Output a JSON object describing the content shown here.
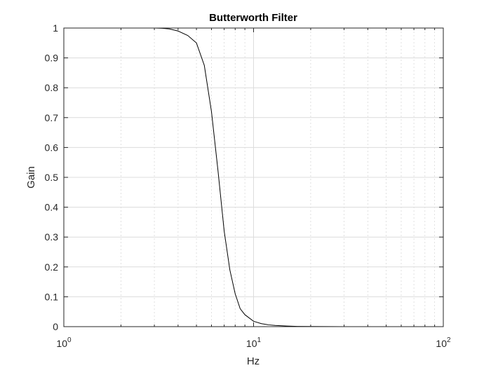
{
  "chart_data": {
    "type": "line",
    "title": "Butterworth Filter",
    "xlabel": "Hz",
    "ylabel": "Gain",
    "xscale": "log",
    "xlim": [
      1,
      100
    ],
    "ylim": [
      0,
      1
    ],
    "grid": true,
    "minor_grid": true,
    "line_color": "#000000",
    "x_ticks": [
      {
        "base": "10",
        "exp": "0",
        "value": 1
      },
      {
        "base": "10",
        "exp": "1",
        "value": 10
      },
      {
        "base": "10",
        "exp": "2",
        "value": 100
      }
    ],
    "y_ticks": [
      "0",
      "0.1",
      "0.2",
      "0.3",
      "0.4",
      "0.5",
      "0.6",
      "0.7",
      "0.8",
      "0.9",
      "1"
    ],
    "series": [
      {
        "x": [
          1,
          1.5,
          2,
          2.5,
          3,
          3.3,
          3.6,
          4,
          4.5,
          5,
          5.5,
          6,
          6.5,
          7,
          7.5,
          8,
          8.5,
          9,
          10,
          11,
          12,
          13,
          15,
          17,
          20,
          25,
          30,
          40,
          50,
          70,
          100
        ],
        "y": [
          1,
          1,
          1,
          1,
          1,
          0.999,
          0.997,
          0.99,
          0.975,
          0.95,
          0.875,
          0.72,
          0.52,
          0.32,
          0.19,
          0.11,
          0.06,
          0.04,
          0.018,
          0.01,
          0.006,
          0.004,
          0.002,
          0.001,
          0.0005,
          0.0002,
          0.0001,
          0,
          0,
          0,
          0
        ]
      }
    ]
  }
}
